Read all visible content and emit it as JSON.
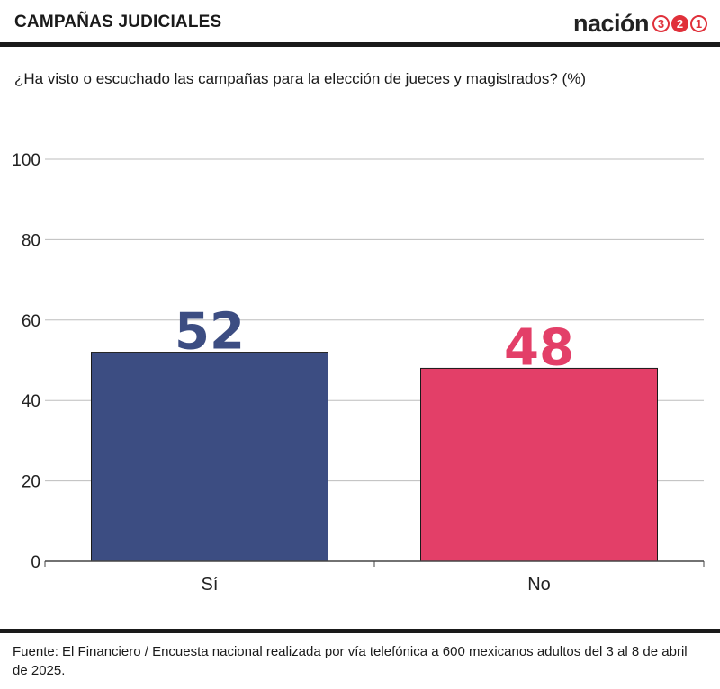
{
  "header": {
    "title": "CAMPAÑAS JUDICIALES",
    "logo_text": "nación",
    "logo_badges": [
      "3",
      "2",
      "1"
    ]
  },
  "subtitle": "¿Ha visto o escuchado las campañas para la elección de jueces y magistrados? (%)",
  "colors": {
    "si": "#3c4d82",
    "no": "#e33f68",
    "grid": "#bdbdbd",
    "axis": "#444444",
    "brand": "#e0303a"
  },
  "chart_data": {
    "type": "bar",
    "title": "",
    "categories": [
      "Sí",
      "No"
    ],
    "values": [
      52,
      48
    ],
    "bar_colors": [
      "#3c4d82",
      "#e33f68"
    ],
    "ylim": [
      0,
      100
    ],
    "yticks": [
      0,
      20,
      40,
      60,
      80,
      100
    ],
    "grid": true,
    "legend": "none",
    "data_labels": [
      "52",
      "48"
    ]
  },
  "source": "Fuente: El Financiero / Encuesta nacional realizada por vía telefónica a 600 mexicanos adultos del 3 al 8 de abril de 2025."
}
